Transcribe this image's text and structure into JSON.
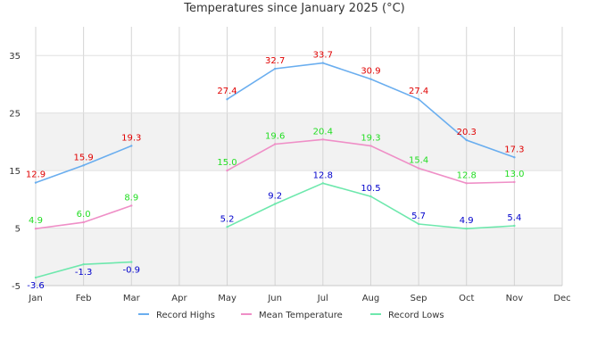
{
  "chart_data": {
    "type": "line",
    "title": "Temperatures since January 2025 (°C)",
    "xlabel": "",
    "ylabel": "",
    "categories": [
      "Jan",
      "Feb",
      "Mar",
      "Apr",
      "May",
      "Jun",
      "Jul",
      "Aug",
      "Sep",
      "Oct",
      "Nov",
      "Dec"
    ],
    "y_ticks": [
      -5,
      5,
      15,
      25,
      35
    ],
    "ylim": [
      -5,
      40
    ],
    "grid": true,
    "legend_position": "bottom",
    "series": [
      {
        "name": "Record Highs",
        "color": "#6aaeef",
        "label_color": "#e00000",
        "values": [
          12.9,
          15.9,
          19.3,
          null,
          27.4,
          32.7,
          33.7,
          30.9,
          27.4,
          20.3,
          17.3,
          null
        ]
      },
      {
        "name": "Mean Temperature",
        "color": "#ef8fc7",
        "label_color": "#22dd22",
        "values": [
          4.9,
          6.0,
          8.9,
          null,
          15.0,
          19.6,
          20.4,
          19.3,
          15.4,
          12.8,
          13.0,
          null
        ]
      },
      {
        "name": "Record Lows",
        "color": "#6ee8ad",
        "label_color": "#0000cc",
        "values": [
          -3.6,
          -1.3,
          -0.9,
          null,
          5.2,
          9.2,
          12.8,
          10.5,
          5.7,
          4.9,
          5.4,
          null
        ]
      }
    ]
  }
}
